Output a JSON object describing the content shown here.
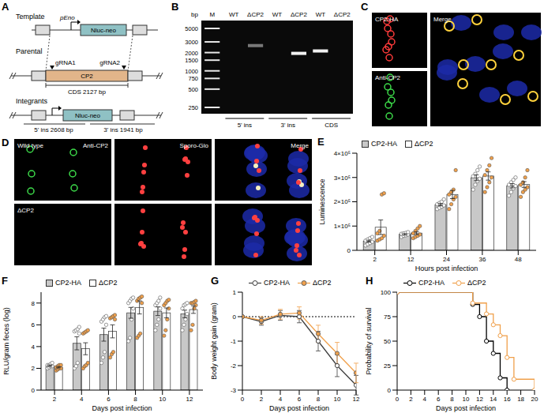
{
  "panel_a": {
    "letter": "A",
    "template": "Template",
    "parental": "Parental",
    "integrants": "Integrants",
    "promoter": "pEno",
    "cassette": "Nluc-neo",
    "gene": "CP2",
    "guides": [
      "gRNA1",
      "gRNA2"
    ],
    "cds": "CDS 2127 bp",
    "junctions": [
      "5' ins 2608 bp",
      "3' ins 1941 bp"
    ]
  },
  "panel_b": {
    "letter": "B",
    "unit": "bp",
    "marker": "M",
    "ladder": [
      5000,
      3000,
      2000,
      1500,
      1000,
      750,
      500,
      250
    ],
    "lanes": [
      {
        "label": "WT",
        "band": null
      },
      {
        "label": "ΔCP2",
        "band": 2608
      },
      {
        "label": "WT",
        "band": null
      },
      {
        "label": "ΔCP2",
        "band": 1941
      },
      {
        "label": "WT",
        "band": 2127
      },
      {
        "label": "ΔCP2",
        "band": null
      }
    ],
    "groups": [
      "5' ins",
      "3' ins",
      "CDS"
    ]
  },
  "panel_c": {
    "letter": "C",
    "channels": [
      "CP2-HA",
      "Anti-CP2",
      "Merge"
    ]
  },
  "panel_d": {
    "letter": "D",
    "rows": [
      "Wild type",
      "ΔCP2"
    ],
    "channels": [
      "Anti-CP2",
      "Sporo-Glo",
      "Merge"
    ]
  },
  "chart_data": [
    {
      "letter": "E",
      "type": "bar",
      "x_label": "Hours post infection",
      "y_label": "Luminescence",
      "categories": [
        "2",
        "12",
        "24",
        "36",
        "48"
      ],
      "ylim": [
        0,
        400000
      ],
      "yticks": [
        0,
        {
          "value": 100000,
          "label": "1×10⁵"
        },
        {
          "value": 200000,
          "label": "2×10⁵"
        },
        {
          "value": 300000,
          "label": "3×10⁵"
        },
        {
          "value": 400000,
          "label": "4×10⁵"
        }
      ],
      "grid": false,
      "legend": "top-left",
      "series": [
        {
          "name": "CP2-HA",
          "color": "#c8c8c8",
          "values": [
            38000,
            66000,
            188000,
            299000,
            266000
          ],
          "error": [
            4000,
            3000,
            5000,
            12000,
            9000
          ],
          "points": [
            [
              20000,
              25000,
              30000,
              35000,
              40000,
              45000,
              50000,
              55000
            ],
            [
              55000,
              60000,
              62000,
              65000,
              68000,
              70000,
              72000,
              75000
            ],
            [
              170000,
              175000,
              180000,
              185000,
              190000,
              195000,
              200000,
              210000
            ],
            [
              250000,
              270000,
              285000,
              295000,
              305000,
              315000,
              330000,
              345000
            ],
            [
              225000,
              240000,
              255000,
              265000,
              270000,
              280000,
              290000,
              300000
            ]
          ]
        },
        {
          "name": "ΔCP2",
          "color": "#ffffff",
          "values": [
            95000,
            71000,
            230000,
            306000,
            271000
          ],
          "error": [
            30000,
            6000,
            17000,
            17000,
            12000
          ],
          "points": [
            [
              40000,
              45000,
              50000,
              60000,
              70000,
              80000,
              230000,
              235000
            ],
            [
              50000,
              55000,
              60000,
              65000,
              70000,
              80000,
              90000,
              100000
            ],
            [
              170000,
              190000,
              210000,
              220000,
              230000,
              240000,
              250000,
              330000
            ],
            [
              240000,
              260000,
              280000,
              300000,
              310000,
              330000,
              350000,
              380000
            ],
            [
              220000,
              240000,
              250000,
              260000,
              270000,
              280000,
              300000,
              330000
            ]
          ]
        }
      ]
    },
    {
      "letter": "F",
      "type": "bar",
      "x_label": "Days post infection",
      "y_label": "RLU/gram feces (log)",
      "categories": [
        "2",
        "4",
        "6",
        "8",
        "10",
        "12"
      ],
      "ylim": [
        0,
        9
      ],
      "yticks": [
        0,
        2,
        4,
        6,
        8
      ],
      "grid": false,
      "legend": "top-left",
      "series": [
        {
          "name": "CP2-HA",
          "color": "#c8c8c8",
          "values": [
            2.25,
            4.3,
            5.1,
            7.1,
            7.25,
            7.0
          ],
          "error": [
            0.06,
            0.6,
            0.6,
            0.5,
            0.4,
            0.35
          ],
          "points": [
            [
              2.0,
              2.1,
              2.2,
              2.2,
              2.3,
              2.3,
              2.4,
              2.5
            ],
            [
              2.0,
              2.2,
              2.5,
              5.2,
              5.4,
              5.5,
              5.6,
              5.8
            ],
            [
              2.5,
              3.0,
              3.5,
              6.0,
              6.3,
              6.5,
              6.7,
              6.8
            ],
            [
              4.5,
              4.8,
              6.5,
              7.5,
              8.0,
              8.2,
              8.4,
              8.5
            ],
            [
              5.5,
              6.0,
              6.5,
              7.5,
              7.8,
              8.0,
              8.2,
              8.5
            ],
            [
              5.5,
              6.0,
              6.5,
              7.0,
              7.5,
              7.8,
              7.9,
              8.0
            ]
          ]
        },
        {
          "name": "ΔCP2",
          "color": "#ffffff",
          "values": [
            2.1,
            3.8,
            5.4,
            7.6,
            7.1,
            7.4
          ],
          "error": [
            0.06,
            0.55,
            0.6,
            0.6,
            0.45,
            0.35
          ],
          "points": [
            [
              1.8,
              1.9,
              2.0,
              2.0,
              2.1,
              2.2,
              2.3,
              2.3
            ],
            [
              2.0,
              2.2,
              2.3,
              2.5,
              5.2,
              5.3,
              5.4,
              5.5
            ],
            [
              3.0,
              3.3,
              3.5,
              6.5,
              6.6,
              6.7,
              6.8,
              6.9
            ],
            [
              4.8,
              5.0,
              5.2,
              8.0,
              8.2,
              8.4,
              8.5,
              8.6
            ],
            [
              5.0,
              5.5,
              6.5,
              7.5,
              7.8,
              8.0,
              8.2,
              8.3
            ],
            [
              5.5,
              6.0,
              7.5,
              7.8,
              8.0,
              8.0,
              8.1,
              8.2
            ]
          ]
        }
      ]
    },
    {
      "letter": "G",
      "type": "line",
      "x_label": "Days post infection",
      "y_label": "Body weight gain (gram)",
      "x": [
        0,
        2,
        4,
        6,
        8,
        10,
        12
      ],
      "xlim": [
        0,
        12
      ],
      "xticks": [
        0,
        2,
        4,
        6,
        8,
        10,
        12
      ],
      "ylim": [
        -3,
        1
      ],
      "yticks": [
        -3,
        -2,
        -1,
        0,
        1
      ],
      "baseline": 0,
      "grid": false,
      "legend": "top-left",
      "line_style": "solid",
      "series": [
        {
          "name": "CP2-HA",
          "color": "#404040",
          "marker": "open_circle",
          "values": [
            0,
            -0.2,
            0.05,
            0,
            -1.0,
            -2.0,
            -2.8
          ],
          "error": [
            0,
            0.15,
            0.2,
            0.25,
            0.4,
            0.45,
            0.4
          ]
        },
        {
          "name": "ΔCP2",
          "color": "#f0a04b",
          "marker": "circle",
          "values": [
            0,
            -0.15,
            0.1,
            0.15,
            -0.7,
            -1.5,
            -2.3
          ],
          "error": [
            0,
            0.15,
            0.2,
            0.25,
            0.35,
            0.45,
            0.4
          ]
        }
      ]
    },
    {
      "letter": "H",
      "type": "line",
      "x_label": "Days post infection",
      "y_label": "Probability of survival",
      "xlim": [
        0,
        20
      ],
      "xticks": [
        0,
        2,
        4,
        6,
        8,
        10,
        12,
        14,
        16,
        18,
        20
      ],
      "ylim": [
        0,
        100
      ],
      "yticks": [
        0,
        25,
        50,
        75,
        100
      ],
      "grid": false,
      "legend": "top-left",
      "line_style": "step",
      "series": [
        {
          "name": "CP2-HA",
          "color": "#000000",
          "marker": "open_circle",
          "x": [
            0,
            11,
            12,
            13,
            14,
            15,
            16
          ],
          "values": [
            100,
            87.5,
            75,
            50,
            37.5,
            12.5,
            0
          ]
        },
        {
          "name": "ΔCP2",
          "color": "#f0a04b",
          "marker": "open_circle",
          "x": [
            0,
            11,
            13,
            14,
            15,
            16,
            17,
            20
          ],
          "values": [
            100,
            88.9,
            77.8,
            66.7,
            55.6,
            33.3,
            11.1,
            0
          ]
        }
      ]
    }
  ]
}
